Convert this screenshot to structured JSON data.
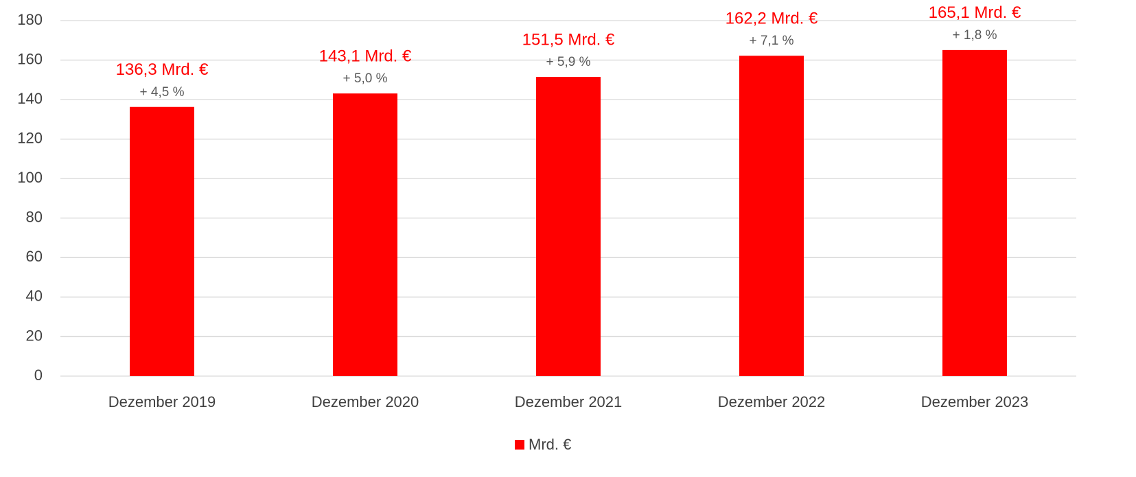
{
  "chart_data": {
    "type": "bar",
    "categories": [
      "Dezember 2019",
      "Dezember 2020",
      "Dezember 2021",
      "Dezember 2022",
      "Dezember 2023"
    ],
    "series": [
      {
        "name": "Mrd. €",
        "color": "#ff0000",
        "values": [
          136.3,
          143.1,
          151.5,
          162.2,
          165.1
        ],
        "value_labels": [
          "136,3 Mrd. €",
          "143,1 Mrd. €",
          "151,5 Mrd. €",
          "162,2 Mrd. €",
          "165,1 Mrd. €"
        ]
      }
    ],
    "annotations": [
      "+ 4,5 %",
      "+ 5,0 %",
      "+ 5,9 %",
      "+ 7,1 %",
      "+ 1,8 %"
    ],
    "ylim": [
      0,
      180
    ],
    "yticks": [
      0,
      20,
      40,
      60,
      80,
      100,
      120,
      140,
      160,
      180
    ],
    "grid": true,
    "legend": "bottom"
  }
}
